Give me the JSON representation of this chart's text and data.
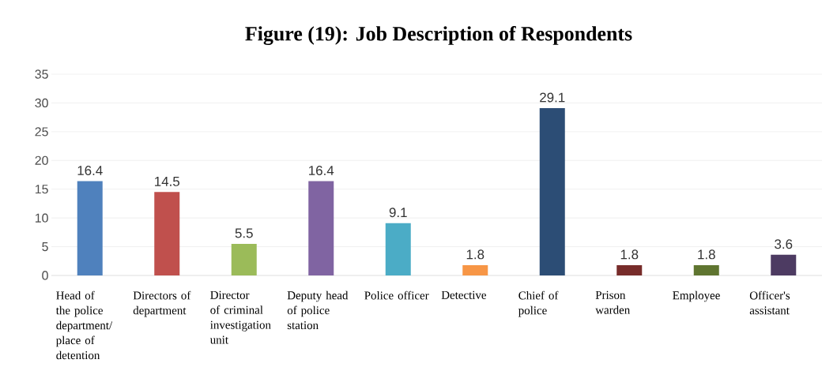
{
  "chart_data": {
    "type": "bar",
    "title": "Figure (19): Job Description of Respondents",
    "categories": [
      "Head of the police department/ place of detention",
      "Directors of department",
      "Director of criminal investigation unit",
      "Deputy head of police station",
      "Police officer",
      "Detective",
      "Chief of police",
      "Prison warden",
      "Employee",
      "Officer's assistant"
    ],
    "values": [
      16.4,
      14.5,
      5.5,
      16.4,
      9.1,
      1.8,
      29.1,
      1.8,
      1.8,
      3.6
    ],
    "colors": [
      "#4f81bd",
      "#c0504d",
      "#9bbb59",
      "#8064a2",
      "#4bacc6",
      "#f79646",
      "#2c4d75",
      "#772c2a",
      "#5f7530",
      "#4d3b62"
    ],
    "ylim": [
      0,
      35
    ],
    "yticks": [
      0,
      5,
      10,
      15,
      20,
      25,
      30,
      35
    ],
    "grid": "y",
    "data_labels": true
  }
}
